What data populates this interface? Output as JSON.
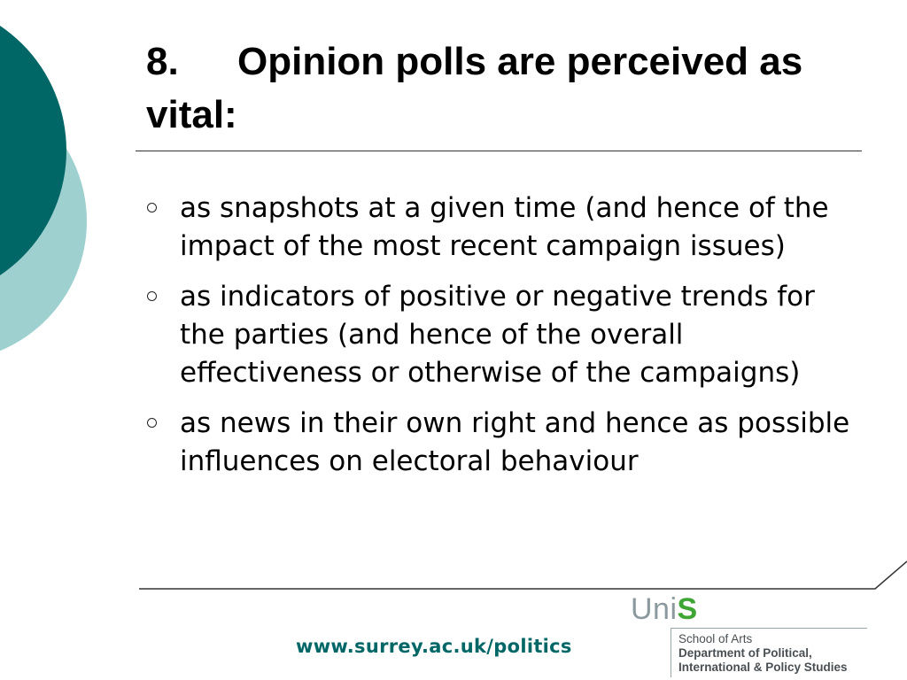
{
  "slide": {
    "title_number": "8.",
    "title_text": "Opinion polls are perceived as vital:",
    "bullets": [
      "as snapshots at a given time (and hence of the impact of the most recent campaign issues)",
      "as indicators of positive or negative trends for the parties (and hence of the overall effectiveness or otherwise of the campaigns)",
      "as news in their own right and hence as possible influences on electoral behaviour"
    ]
  },
  "footer": {
    "url": "www.surrey.ac.uk/politics",
    "logo_uni": "Uni",
    "logo_s": "S",
    "school": "School of Arts",
    "department_line1": "Department of Political,",
    "department_line2": "International & Policy Studies"
  },
  "colors": {
    "teal_dark": "#006666",
    "teal_light": "#9fd0d0",
    "logo_green": "#3fa535",
    "logo_grey": "#8c9aa0"
  }
}
